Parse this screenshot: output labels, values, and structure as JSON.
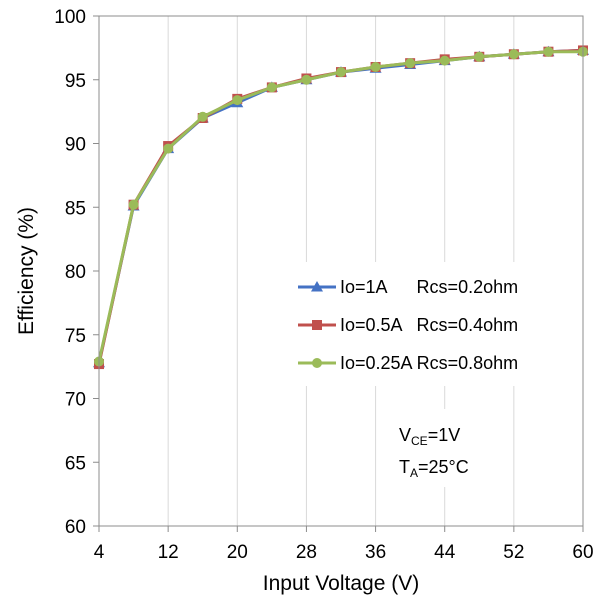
{
  "chart_data": {
    "type": "line",
    "xlabel": "Input Voltage (V)",
    "ylabel": "Efficiency (%)",
    "xlim": [
      4,
      60
    ],
    "ylim": [
      60,
      100
    ],
    "xticks": [
      "4",
      "12",
      "20",
      "28",
      "36",
      "44",
      "52",
      "60"
    ],
    "yticks": [
      "60",
      "65",
      "70",
      "75",
      "80",
      "85",
      "90",
      "95",
      "100"
    ],
    "grid": "vertical",
    "legend_position": "right",
    "series": [
      {
        "name": "Io=1A      Rcs=0.2ohm",
        "color": "#4472C4",
        "marker": "triangle",
        "x": [
          4,
          8,
          12,
          16,
          20,
          24,
          28,
          32,
          36,
          40,
          44,
          48,
          52,
          56,
          60
        ],
        "y": [
          72.8,
          85.1,
          89.6,
          92.0,
          93.2,
          94.4,
          95.0,
          95.6,
          95.9,
          96.2,
          96.5,
          96.8,
          97.0,
          97.2,
          97.3
        ]
      },
      {
        "name": "Io=0.5A   Rcs=0.4ohm",
        "color": "#C0504D",
        "marker": "square",
        "x": [
          4,
          8,
          12,
          16,
          20,
          24,
          28,
          32,
          36,
          40,
          44,
          48,
          52,
          56,
          60
        ],
        "y": [
          72.7,
          85.2,
          89.8,
          92.0,
          93.5,
          94.4,
          95.1,
          95.6,
          96.0,
          96.3,
          96.6,
          96.8,
          97.0,
          97.2,
          97.3
        ]
      },
      {
        "name": "Io=0.25A Rcs=0.8ohm",
        "color": "#9BBB59",
        "marker": "circle",
        "x": [
          4,
          8,
          12,
          16,
          20,
          24,
          28,
          32,
          36,
          40,
          44,
          48,
          52,
          56,
          60
        ],
        "y": [
          72.9,
          85.2,
          89.6,
          92.1,
          93.4,
          94.4,
          95.0,
          95.6,
          96.0,
          96.3,
          96.5,
          96.8,
          97.0,
          97.2,
          97.2
        ]
      }
    ],
    "annotations": [
      {
        "base": "V",
        "sub": "CE",
        "rest": "=1V"
      },
      {
        "base": "T",
        "sub": "A",
        "rest": "=25°C"
      }
    ]
  }
}
